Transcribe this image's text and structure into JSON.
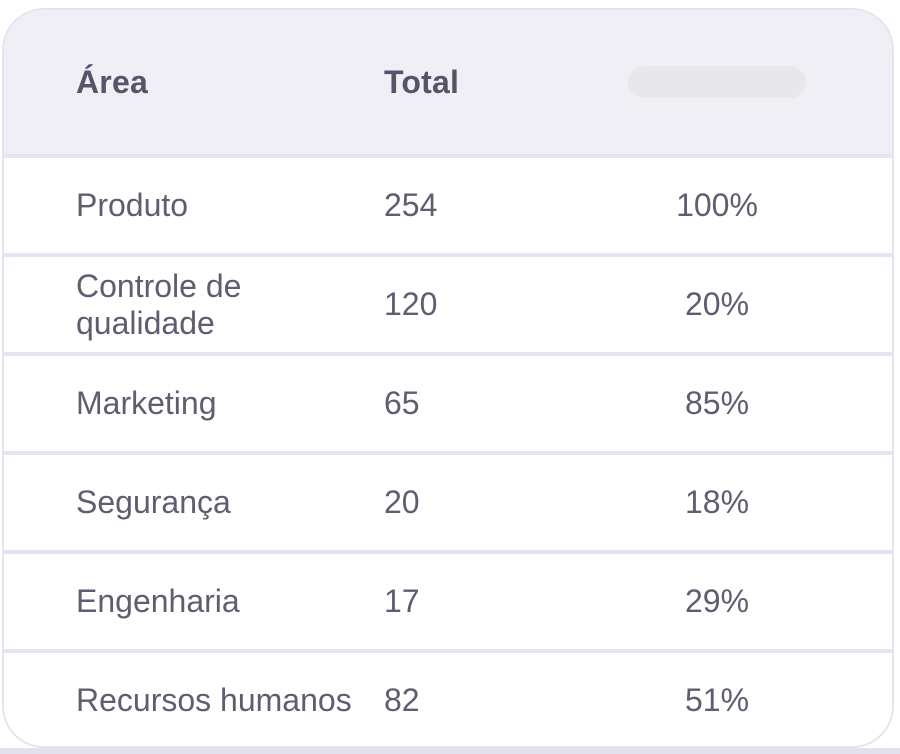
{
  "table": {
    "header": {
      "area_label": "Área",
      "total_label": "Total"
    },
    "rows": [
      {
        "area": "Produto",
        "total": "254",
        "percent": "100%"
      },
      {
        "area": "Controle de qualidade",
        "total": "120",
        "percent": "20%"
      },
      {
        "area": "Marketing",
        "total": "65",
        "percent": "85%"
      },
      {
        "area": "Segurança",
        "total": "20",
        "percent": "18%"
      },
      {
        "area": "Engenharia",
        "total": "17",
        "percent": "29%"
      },
      {
        "area": "Recursos humanos",
        "total": "82",
        "percent": "51%"
      }
    ],
    "colors": {
      "header_bg": "#F0EFF5",
      "row_bg": "#FFFFFF",
      "separator": "#E5E4F0",
      "card_border": "#E4E3EF",
      "header_text": "#55556A",
      "row_text": "#5E5E70",
      "skeleton": "#E8E8EB",
      "bottom_strip": "#E2E1EC"
    }
  }
}
